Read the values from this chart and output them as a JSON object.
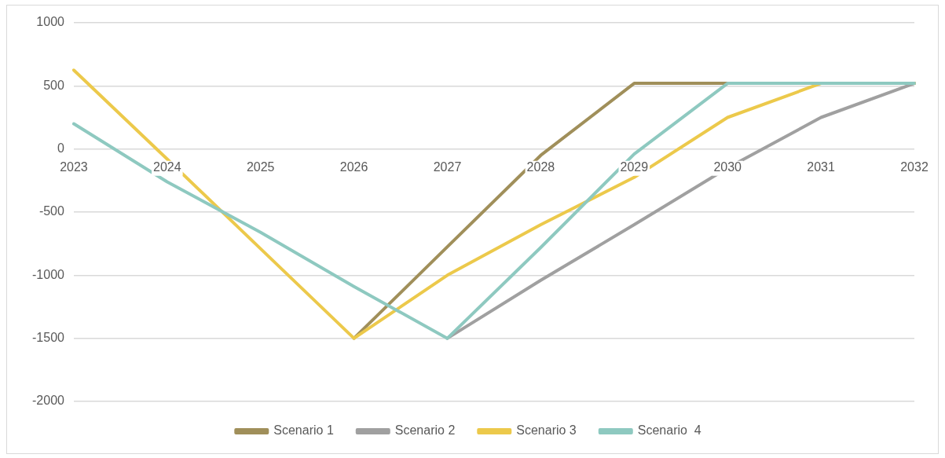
{
  "chart_data": {
    "type": "line",
    "categories": [
      "2023",
      "2024",
      "2025",
      "2026",
      "2027",
      "2028",
      "2029",
      "2030",
      "2031",
      "2032"
    ],
    "series": [
      {
        "name": "Scenario 1",
        "color": "#a08f5a",
        "values": [
          null,
          null,
          null,
          -1500,
          -775,
          -50,
          520,
          520,
          520,
          520
        ]
      },
      {
        "name": "Scenario 2",
        "color": "#a0a0a0",
        "values": [
          null,
          null,
          null,
          null,
          -1500,
          -1040,
          -600,
          -150,
          250,
          520
        ]
      },
      {
        "name": "Scenario 3",
        "color": "#ecc94b",
        "values": [
          625,
          -80,
          -790,
          -1500,
          -1000,
          -600,
          -225,
          250,
          520,
          520
        ]
      },
      {
        "name": "Scenario  4",
        "color": "#8ec9c0",
        "values": [
          200,
          -260,
          -660,
          -1090,
          -1500,
          -780,
          -40,
          520,
          520,
          520
        ]
      }
    ],
    "ylim": [
      -2000,
      1000
    ],
    "yticks": [
      -2000,
      -1500,
      -1000,
      -500,
      0,
      500,
      1000
    ],
    "grid": "y",
    "legend": "bottom",
    "marker": "none",
    "line_style": "solid"
  }
}
